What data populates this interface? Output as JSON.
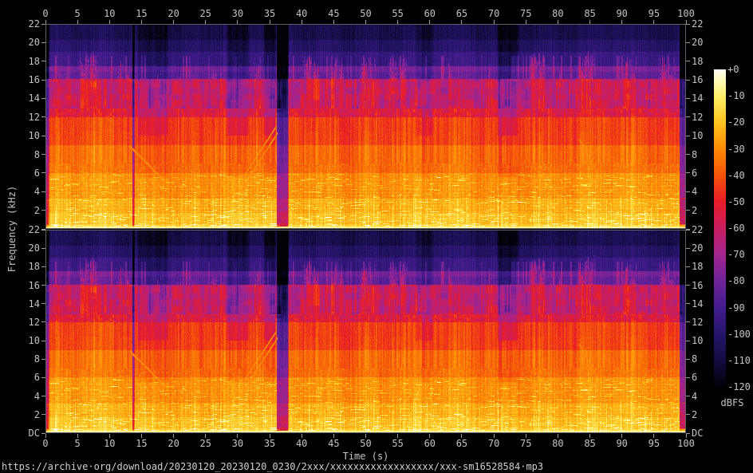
{
  "figure": {
    "background": "#000000",
    "text_color": "#c4c4c4",
    "tick_color": "#9a9a9a",
    "frame_color": "#5f5f5f"
  },
  "labels": {
    "freq_axis": "Frequency (kHz)",
    "time_axis": "Time (s)",
    "colorbar_unit": "dBFS",
    "footer_url": "https://archive·org/download/20230120_20230120_0230/2xxx/xxxxxxxxxxxxxxxxxx/xxx-sm16528584·mp3"
  },
  "axes": {
    "x_tick_labels": [
      "0",
      "5",
      "10",
      "15",
      "20",
      "25",
      "30",
      "35",
      "40",
      "45",
      "50",
      "55",
      "60",
      "65",
      "70",
      "75",
      "80",
      "85",
      "90",
      "95",
      "100"
    ],
    "y_tick_labels_panel1": [
      "22",
      "20",
      "18",
      "16",
      "14",
      "12",
      "10",
      "8",
      "6",
      "4",
      "2"
    ],
    "y_tick_labels_panel2": [
      "22",
      "20",
      "18",
      "16",
      "14",
      "12",
      "10",
      "8",
      "6",
      "4",
      "2",
      "DC"
    ],
    "colorbar_tick_labels": [
      "+0",
      "-10",
      "-20",
      "-30",
      "-40",
      "-50",
      "-60",
      "-70",
      "-80",
      "-90",
      "-100",
      "-110",
      "-120"
    ]
  },
  "chart_data": {
    "type": "heatmap",
    "subtype": "audio-spectrogram",
    "channels": 2,
    "x_axis": {
      "label": "Time (s)",
      "range": [
        0,
        100
      ],
      "tick_step": 5
    },
    "y_axis": {
      "label": "Frequency (kHz)",
      "range": [
        0,
        22
      ],
      "tick_step": 2,
      "bottom_label": "DC"
    },
    "z_axis": {
      "label": "dBFS",
      "range": [
        0,
        -120
      ],
      "tick_step": 10,
      "colorbar_position": "right"
    },
    "palette_stops": [
      [
        0.0,
        "#020108"
      ],
      [
        0.083,
        "#140b40"
      ],
      [
        0.167,
        "#27156b"
      ],
      [
        0.25,
        "#421c8e"
      ],
      [
        0.333,
        "#6f2399"
      ],
      [
        0.417,
        "#a2258e"
      ],
      [
        0.5,
        "#c81d60"
      ],
      [
        0.583,
        "#e81c28"
      ],
      [
        0.667,
        "#f4530a"
      ],
      [
        0.75,
        "#fd8b07"
      ],
      [
        0.833,
        "#ffc31d"
      ],
      [
        0.917,
        "#fff06a"
      ],
      [
        1.0,
        "#fffef2"
      ]
    ],
    "render_seed": 20230120,
    "envelope_bands_khz_db": [
      [
        0,
        0.09,
        -7
      ],
      [
        0.09,
        0.35,
        -16
      ],
      [
        0.35,
        1.7,
        -21
      ],
      [
        1.7,
        3.2,
        -25
      ],
      [
        3.2,
        6,
        -30
      ],
      [
        6,
        9,
        -36
      ],
      [
        9,
        12,
        -43
      ],
      [
        12,
        12.9,
        -53
      ],
      [
        12.9,
        16.1,
        -62
      ],
      [
        16.1,
        16.9,
        -84
      ],
      [
        16.9,
        17.5,
        -79
      ],
      [
        17.5,
        19,
        -94
      ],
      [
        19,
        20.3,
        -101
      ],
      [
        20.3,
        22,
        -107
      ]
    ],
    "events": {
      "bursts_t_sigma_topkhz_db": [
        [
          2.1,
          0.25,
          17.5,
          26
        ],
        [
          3.3,
          0.3,
          18,
          24
        ],
        [
          5.9,
          0.5,
          19.3,
          34
        ],
        [
          7.1,
          0.5,
          19.5,
          36
        ],
        [
          8.0,
          0.3,
          18.2,
          26
        ],
        [
          11.6,
          0.35,
          18.6,
          30
        ],
        [
          12.8,
          0.3,
          18.2,
          26
        ],
        [
          15.1,
          0.3,
          17.6,
          22
        ],
        [
          17.6,
          0.35,
          18.0,
          26
        ],
        [
          18.7,
          0.3,
          17.6,
          22
        ],
        [
          20.8,
          0.35,
          17.8,
          24
        ],
        [
          23.2,
          0.3,
          17.4,
          22
        ],
        [
          26.3,
          0.4,
          18.3,
          27
        ],
        [
          27.6,
          0.35,
          18.0,
          25
        ],
        [
          33.0,
          0.4,
          18.4,
          28
        ],
        [
          34.1,
          0.3,
          17.8,
          23
        ],
        [
          40.9,
          0.5,
          19.2,
          34
        ],
        [
          42.2,
          0.45,
          19.0,
          33
        ],
        [
          44.9,
          0.45,
          18.9,
          32
        ],
        [
          46.1,
          0.4,
          18.5,
          29
        ],
        [
          49.8,
          0.5,
          19.2,
          34
        ],
        [
          51.0,
          0.4,
          18.6,
          30
        ],
        [
          54.3,
          0.5,
          19.0,
          33
        ],
        [
          55.7,
          0.45,
          19.4,
          34
        ],
        [
          57.8,
          0.3,
          18.0,
          25
        ],
        [
          60.1,
          0.3,
          17.4,
          21
        ],
        [
          63.2,
          0.4,
          18.6,
          29
        ],
        [
          64.4,
          0.3,
          17.8,
          23
        ],
        [
          69.3,
          0.35,
          18.0,
          25
        ],
        [
          76.2,
          0.5,
          19.2,
          34
        ],
        [
          77.5,
          0.5,
          19.4,
          35
        ],
        [
          80.3,
          0.35,
          18.2,
          26
        ],
        [
          83.6,
          0.5,
          19.0,
          33
        ],
        [
          84.9,
          0.45,
          19.3,
          34
        ],
        [
          90.5,
          0.5,
          19.2,
          34
        ],
        [
          91.7,
          0.45,
          18.9,
          32
        ],
        [
          96.6,
          0.5,
          19.3,
          35
        ],
        [
          97.7,
          0.4,
          18.8,
          30
        ]
      ],
      "quiet_gaps_t0_t1_db_fminkhz": [
        [
          -0.3,
          0.55,
          32,
          0.4
        ],
        [
          13.45,
          13.9,
          30,
          0.3
        ],
        [
          36.0,
          37.9,
          45,
          0.18
        ],
        [
          98.9,
          100.3,
          42,
          0.5
        ]
      ],
      "upper_band_dips_t0_t1_db": [
        [
          14.2,
          19.2,
          9
        ],
        [
          28.2,
          31.8,
          12
        ],
        [
          34.0,
          36.0,
          13
        ],
        [
          57.6,
          60.5,
          8
        ],
        [
          70.4,
          73.8,
          13
        ]
      ],
      "sweeps_t0_t1_f0_f1": [
        [
          13.2,
          20.2,
          8.8,
          4.0
        ],
        [
          26.9,
          35.9,
          1.4,
          10.9
        ],
        [
          27.7,
          36.2,
          1.2,
          10.3
        ],
        [
          83.3,
          88.3,
          9.6,
          3.2
        ]
      ]
    }
  }
}
